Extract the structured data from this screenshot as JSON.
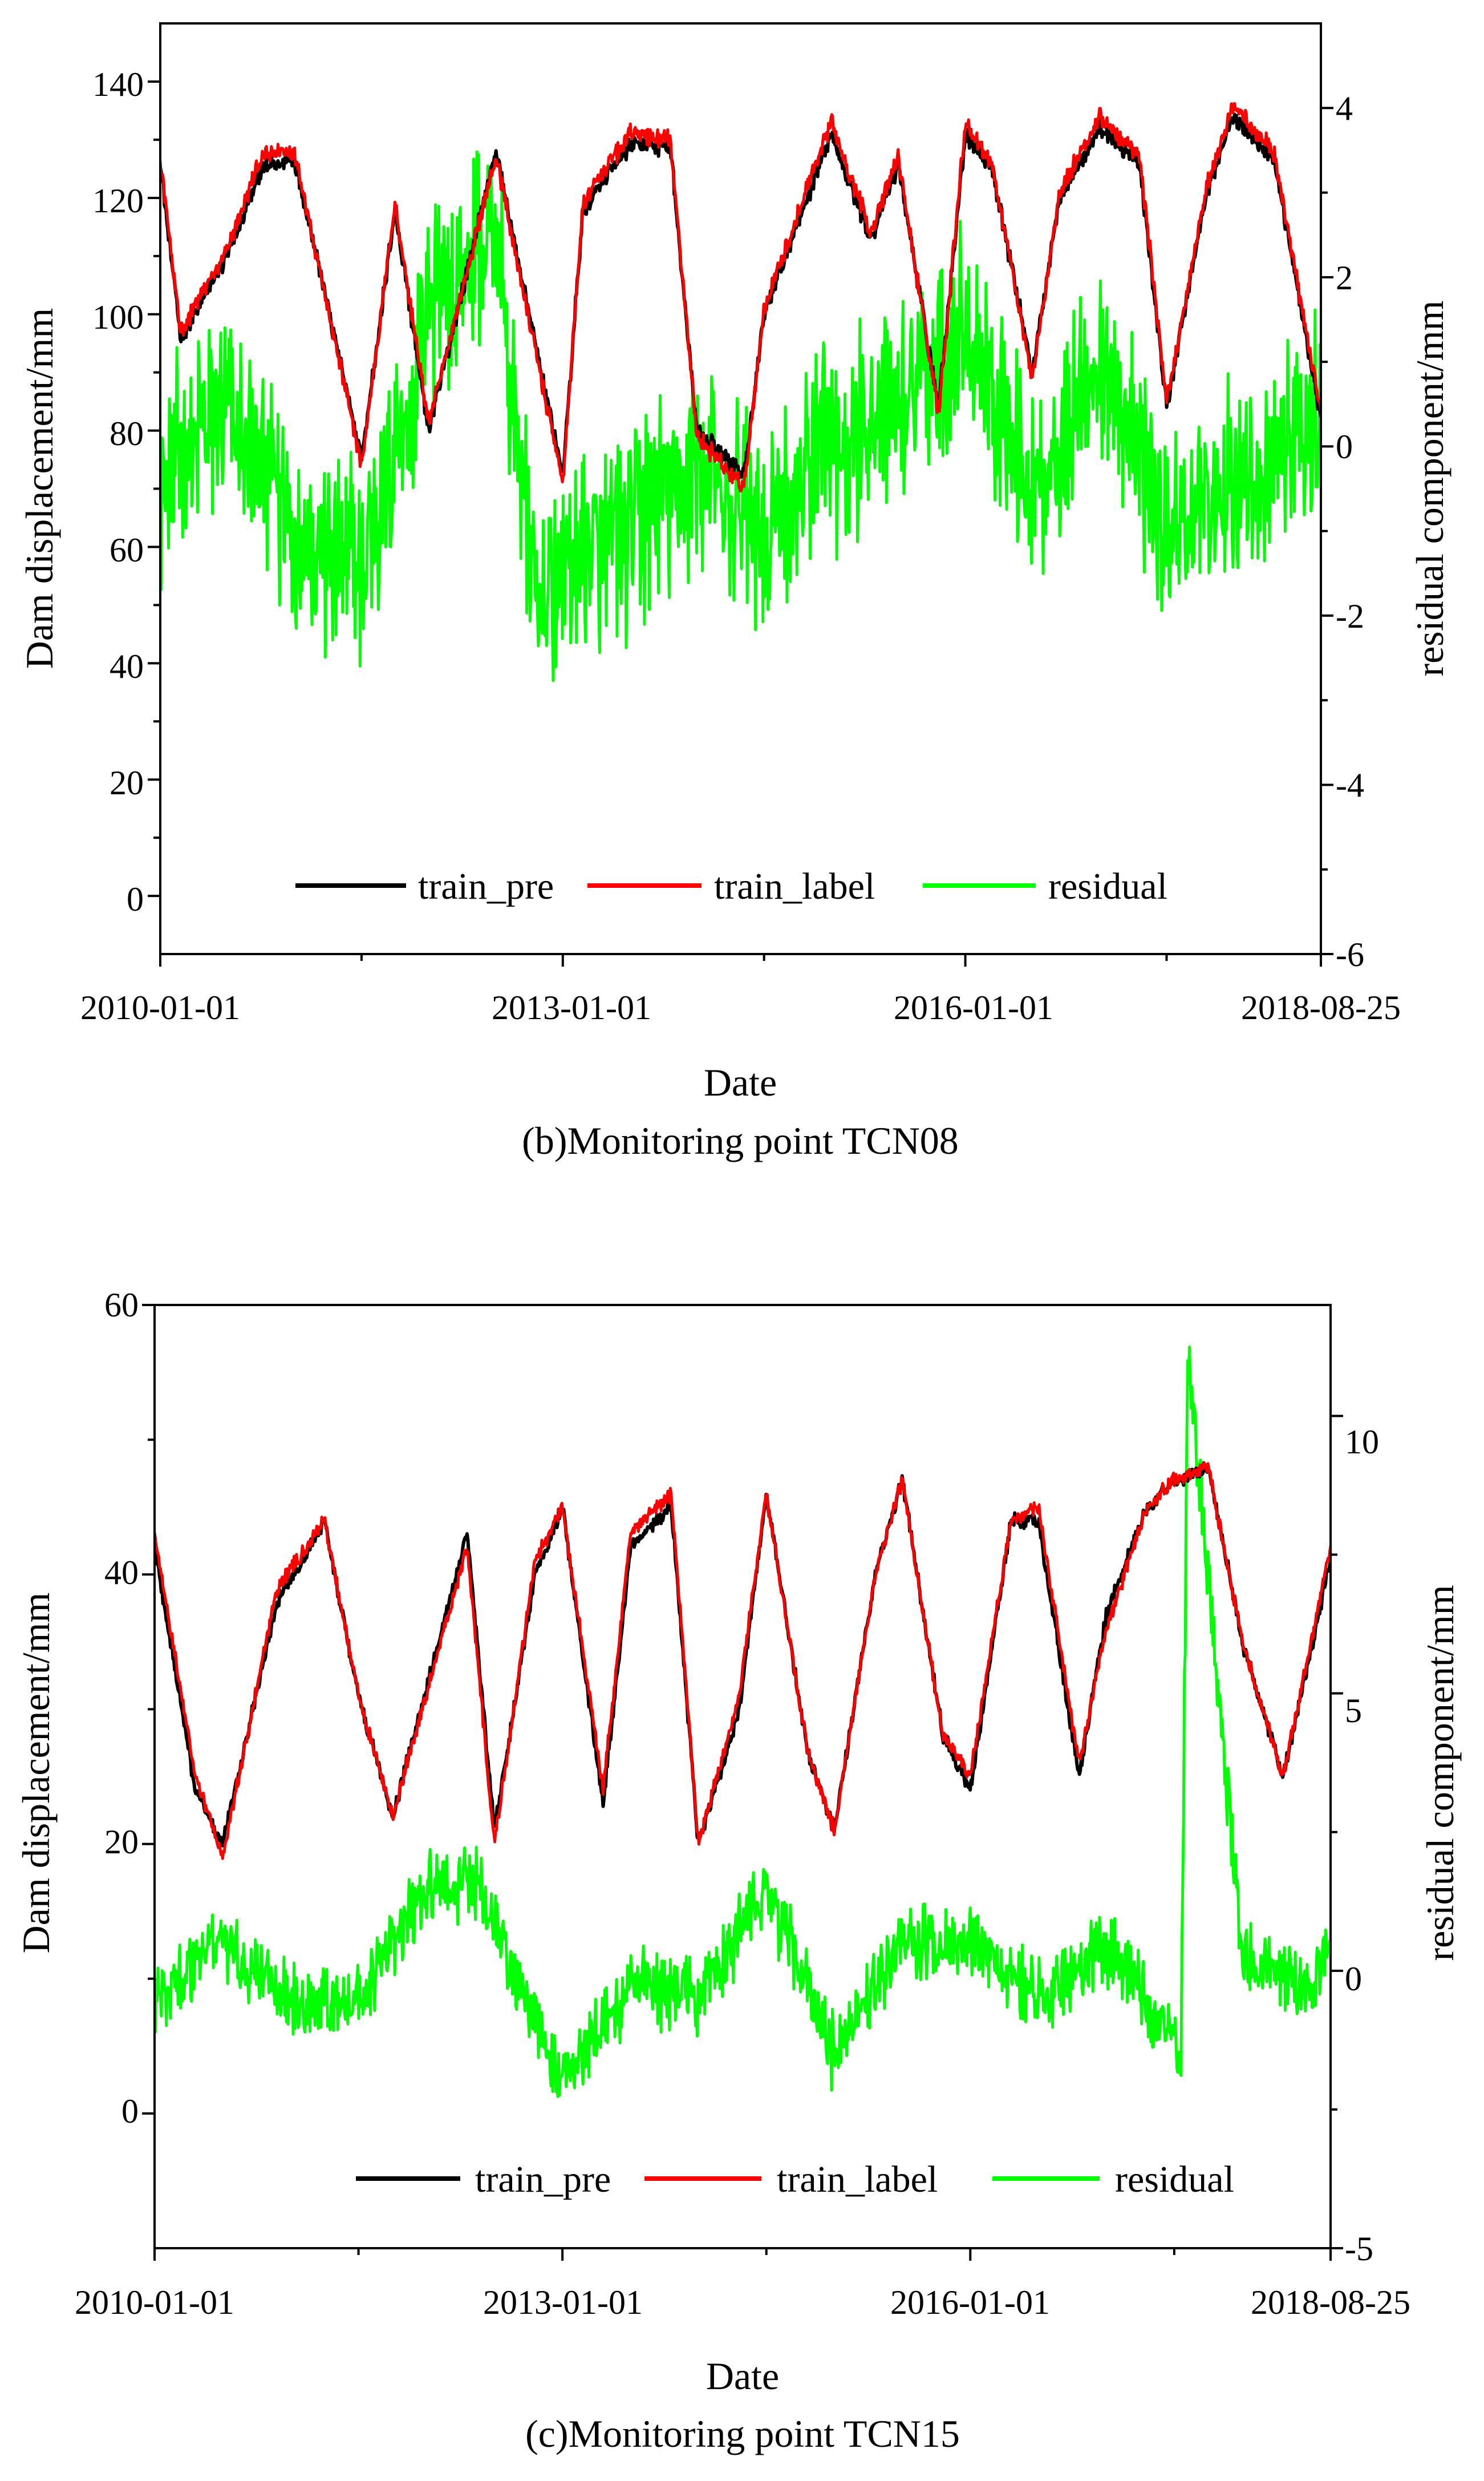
{
  "chart_data": [
    {
      "type": "line",
      "caption": "(b)Monitoring point TCN08",
      "xlabel": "Date",
      "ylabel": "Dam displacement/mm",
      "y2label": "residual component/mm",
      "x_range": [
        "2010-01-01",
        "2018-08-25"
      ],
      "x_ticks": [
        "2010-01-01",
        "2013-01-01",
        "2016-01-01",
        "2018-08-25"
      ],
      "ylim": [
        -10,
        150
      ],
      "y_ticks": [
        0,
        20,
        40,
        60,
        80,
        100,
        120,
        140
      ],
      "y2lim": [
        -6,
        5
      ],
      "y2_ticks": [
        -6,
        -4,
        -2,
        0,
        2,
        4
      ],
      "legend_position": "bottom-center",
      "series": [
        {
          "name": "train_pre",
          "axis": "left",
          "color": "#000000",
          "x": [
            0,
            0.15,
            0.5,
            0.75,
            1,
            1.5,
            1.75,
            2,
            2.5,
            3,
            3.15,
            3.5,
            3.8,
            4,
            4.35,
            4.5,
            5,
            5.3,
            5.5,
            5.8,
            6,
            6.2,
            6.5,
            6.7,
            7,
            7.3,
            7.5,
            7.8,
            8,
            8.3,
            8.65
          ],
          "values": [
            126,
            96,
            110,
            125,
            127,
            75,
            118,
            80,
            128,
            72,
            118,
            129,
            129,
            80,
            72,
            100,
            131,
            113,
            126,
            84,
            131,
            125,
            90,
            120,
            132,
            126,
            84,
            121,
            134,
            127,
            82
          ]
        },
        {
          "name": "train_label",
          "axis": "left",
          "color": "#ff0000",
          "x": [
            0,
            0.15,
            0.5,
            0.75,
            1,
            1.5,
            1.75,
            2,
            2.5,
            3,
            3.15,
            3.5,
            3.8,
            4,
            4.35,
            4.5,
            5,
            5.3,
            5.5,
            5.8,
            6,
            6.2,
            6.5,
            6.7,
            7,
            7.3,
            7.5,
            7.8,
            8,
            8.3,
            8.65
          ],
          "values": [
            127,
            97,
            111,
            127,
            128,
            74,
            119,
            81,
            127,
            71,
            119,
            131,
            130,
            79,
            70,
            101,
            133,
            114,
            127,
            83,
            133,
            126,
            89,
            121,
            134,
            127,
            85,
            122,
            136,
            128,
            83
          ]
        },
        {
          "name": "residual",
          "axis": "right",
          "color": "#00ff00",
          "x": [
            0,
            0.5,
            1,
            1.5,
            2,
            2.5,
            2.8,
            3,
            3.5,
            4,
            4.5,
            5,
            5.5,
            6,
            6.5,
            7,
            7.5,
            8,
            8.65
          ],
          "values": [
            -0.5,
            0.5,
            -1.0,
            -1.5,
            1.5,
            2.5,
            -2.0,
            -1.5,
            -1.0,
            -0.3,
            -1.0,
            0.0,
            0.5,
            1.5,
            -0.5,
            1.0,
            -1.0,
            -0.5,
            0.5
          ]
        }
      ]
    },
    {
      "type": "line",
      "caption": "(c)Monitoring point TCN15",
      "xlabel": "Date",
      "ylabel": "Dam displacement/mm",
      "y2label": "residual component/mm",
      "x_range": [
        "2010-01-01",
        "2018-08-25"
      ],
      "x_ticks": [
        "2010-01-01",
        "2013-01-01",
        "2016-01-01",
        "2018-08-25"
      ],
      "ylim": [
        -10,
        60
      ],
      "y_ticks": [
        0,
        20,
        40,
        60
      ],
      "y2lim": [
        -5,
        12
      ],
      "y2_ticks": [
        -5,
        0,
        5,
        10
      ],
      "legend_position": "bottom-center",
      "series": [
        {
          "name": "train_pre",
          "axis": "left",
          "color": "#000000",
          "x": [
            0,
            0.3,
            0.5,
            0.9,
            1.25,
            1.5,
            1.75,
            2.3,
            2.5,
            2.8,
            3.0,
            3.3,
            3.5,
            3.8,
            4.0,
            4.3,
            4.5,
            4.8,
            5.0,
            5.3,
            5.5,
            5.8,
            6.0,
            6.3,
            6.5,
            6.8,
            7.0,
            7.3,
            7.5,
            7.75,
            8.0,
            8.3,
            8.65
          ],
          "values": [
            42,
            24,
            20,
            38,
            44,
            31,
            22,
            43,
            21,
            40,
            45,
            23,
            42,
            45,
            20,
            30,
            46,
            27,
            21,
            40,
            47,
            28,
            24,
            44,
            44,
            25,
            37,
            45,
            47,
            48,
            35,
            25,
            41
          ]
        },
        {
          "name": "train_label",
          "axis": "left",
          "color": "#ff0000",
          "x": [
            0,
            0.3,
            0.5,
            0.9,
            1.25,
            1.5,
            1.75,
            2.3,
            2.5,
            2.8,
            3.0,
            3.3,
            3.5,
            3.8,
            4.0,
            4.3,
            4.5,
            4.8,
            5.0,
            5.3,
            5.5,
            5.8,
            6.0,
            6.3,
            6.5,
            6.8,
            7.0,
            7.3,
            7.5,
            7.75,
            8.0,
            8.3,
            8.65
          ],
          "values": [
            43,
            25,
            19,
            39,
            44,
            31,
            22,
            42,
            20,
            41,
            45,
            24,
            43,
            46,
            20,
            31,
            46,
            27,
            21,
            40,
            47,
            28,
            25,
            44,
            45,
            26,
            36,
            45,
            47,
            48,
            35,
            25,
            42
          ]
        },
        {
          "name": "residual",
          "axis": "right",
          "color": "#00ff00",
          "x": [
            0,
            0.5,
            1,
            1.5,
            1.75,
            2,
            2.4,
            2.8,
            3.0,
            3.5,
            4.0,
            4.5,
            5.0,
            5.5,
            6.0,
            6.5,
            7.0,
            7.4,
            7.55,
            7.6,
            8.0,
            8.5,
            8.65
          ],
          "values": [
            -0.5,
            0.5,
            -0.5,
            -0.5,
            0.5,
            1.5,
            1.5,
            -1.0,
            -2.0,
            -0.3,
            -0.5,
            1.5,
            -1.5,
            0.5,
            0.5,
            -0.5,
            0.5,
            -0.8,
            -1.5,
            11,
            0.2,
            -0.3,
            0.5
          ]
        }
      ]
    }
  ]
}
